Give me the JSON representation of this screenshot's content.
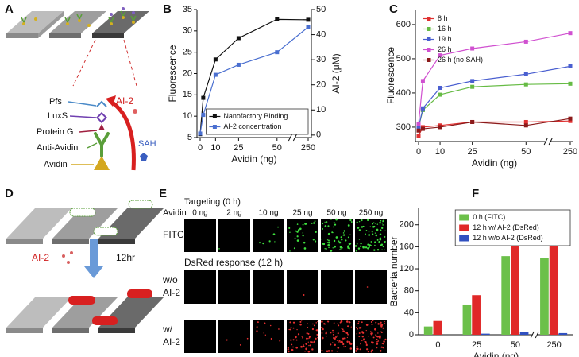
{
  "panel_labels": [
    "A",
    "B",
    "C",
    "D",
    "E",
    "F"
  ],
  "diagram_a": {
    "components": [
      "Pfs",
      "LuxS",
      "Protein G",
      "Anti-Avidin",
      "Avidin"
    ],
    "product": "AI-2",
    "byproduct": "SAH"
  },
  "diagram_d": {
    "signal": "AI-2",
    "duration": "12hr"
  },
  "microscopy": {
    "targeting_title": "Targeting (0 h)",
    "column_header": "Avidin",
    "columns": [
      "0 ng",
      "2 ng",
      "10 ng",
      "25 ng",
      "50 ng",
      "250 ng"
    ],
    "response_title": "DsRed response (12 h)",
    "rows": [
      [
        "FITC"
      ],
      [
        "w/o",
        "AI-2"
      ],
      [
        "w/",
        "AI-2"
      ]
    ]
  },
  "chart_data": [
    {
      "type": "line",
      "x": [
        0,
        2,
        10,
        25,
        50,
        250
      ],
      "xlim": [
        0,
        250
      ],
      "xticks": [
        0,
        10,
        25,
        50,
        250
      ],
      "axis_break": true,
      "xlabel": "Avidin (ng)",
      "ylabel": "Fluorescence",
      "y2label": "AI-2 (μM)",
      "ylim": [
        5,
        35
      ],
      "yticks": [
        5,
        10,
        15,
        20,
        25,
        30,
        35
      ],
      "y2lim": [
        -1,
        50
      ],
      "y2ticks": [
        0,
        10,
        20,
        30,
        40,
        50
      ],
      "legend": "lower right",
      "legend_frame": true,
      "series": [
        {
          "name": "Nanofactory Binding",
          "color": "#111111",
          "values": [
            5.8,
            14.3,
            23.3,
            28.3,
            32.7,
            32.6
          ]
        },
        {
          "name": "AI-2 concentration",
          "color": "#4a6fd0",
          "axis": "y2",
          "values": [
            0.6,
            8,
            24,
            28,
            33,
            43
          ]
        }
      ]
    },
    {
      "type": "line",
      "x": [
        0,
        2,
        10,
        25,
        50,
        250
      ],
      "xlim": [
        0,
        250
      ],
      "xticks": [
        0,
        10,
        25,
        50,
        250
      ],
      "axis_break": true,
      "xlabel": "Avidin (ng)",
      "ylabel": "Fluorescence",
      "ylim": [
        258,
        644
      ],
      "yticks": [
        300,
        400,
        500,
        600
      ],
      "legend": "upper left",
      "legend_frame": false,
      "series": [
        {
          "name": "8 h",
          "color": "#e03030",
          "values": [
            275,
            300,
            305,
            315,
            315,
            318
          ]
        },
        {
          "name": "16 h",
          "color": "#66bb44",
          "values": [
            300,
            350,
            395,
            418,
            425,
            427
          ]
        },
        {
          "name": "19 h",
          "color": "#4a5fd0",
          "values": [
            300,
            355,
            415,
            435,
            455,
            478
          ]
        },
        {
          "name": "26 h",
          "color": "#d050d0",
          "values": [
            310,
            435,
            510,
            530,
            550,
            575
          ]
        },
        {
          "name": "26 h (no SAH)",
          "color": "#8b1a1a",
          "values": [
            290,
            295,
            300,
            315,
            305,
            325
          ]
        }
      ]
    },
    {
      "type": "bar",
      "categories": [
        "0",
        "25",
        "50",
        "250"
      ],
      "axis_break": true,
      "xlabel": "Avidin (ng)",
      "ylabel": "Bacteria number",
      "ylim": [
        0,
        230
      ],
      "yticks": [
        0,
        40,
        80,
        120,
        160,
        200
      ],
      "legend": "upper right",
      "legend_frame": true,
      "series": [
        {
          "name": "0 h (FITC)",
          "color": "#6cc04a",
          "values": [
            15,
            55,
            143,
            140
          ]
        },
        {
          "name": "12 h w/ AI-2 (DsRed)",
          "color": "#e02828",
          "values": [
            25,
            72,
            175,
            174
          ]
        },
        {
          "name": "12 h w/o  AI-2 (DsRed)",
          "color": "#3050c0",
          "values": [
            0,
            2,
            5,
            3
          ]
        }
      ]
    }
  ]
}
